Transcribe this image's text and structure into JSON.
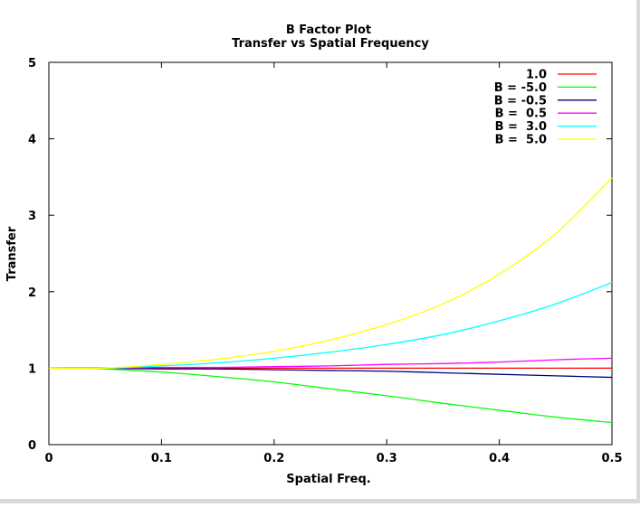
{
  "chart_data": {
    "type": "line",
    "title": "B Factor Plot",
    "subtitle": "Transfer vs Spatial Frequency",
    "xlabel": "Spatial Freq.",
    "ylabel": "Transfer",
    "xlim": [
      0,
      0.5
    ],
    "ylim": [
      0,
      5
    ],
    "xticks": [
      "0",
      "0.1",
      "0.2",
      "0.3",
      "0.4",
      "0.5"
    ],
    "yticks": [
      "0",
      "1",
      "2",
      "3",
      "4",
      "5"
    ],
    "grid": false,
    "legend_position": "top-right",
    "x": [
      0,
      0.05,
      0.1,
      0.15,
      0.2,
      0.25,
      0.3,
      0.35,
      0.4,
      0.45,
      0.5
    ],
    "series": [
      {
        "name": "1.0",
        "color": "#ff0000",
        "values": [
          1.0,
          1.0,
          1.0,
          1.0,
          1.0,
          1.0,
          1.0,
          1.0,
          1.0,
          1.0,
          1.0
        ]
      },
      {
        "name": "B = -5.0",
        "color": "#00ff00",
        "values": [
          1.0,
          0.99,
          0.95,
          0.89,
          0.82,
          0.73,
          0.64,
          0.54,
          0.45,
          0.36,
          0.29
        ]
      },
      {
        "name": "B = -0.5",
        "color": "#000080",
        "values": [
          1.0,
          1.0,
          0.99,
          0.99,
          0.98,
          0.97,
          0.96,
          0.94,
          0.92,
          0.9,
          0.88
        ]
      },
      {
        "name": "B =  0.5",
        "color": "#ff00ff",
        "values": [
          1.0,
          1.0,
          1.01,
          1.01,
          1.02,
          1.03,
          1.05,
          1.06,
          1.08,
          1.11,
          1.13
        ]
      },
      {
        "name": "B =  3.0",
        "color": "#00ffff",
        "values": [
          1.0,
          1.0,
          1.03,
          1.07,
          1.13,
          1.21,
          1.31,
          1.44,
          1.62,
          1.84,
          2.12
        ]
      },
      {
        "name": "B =  5.0",
        "color": "#ffff00",
        "values": [
          1.0,
          1.0,
          1.05,
          1.12,
          1.22,
          1.37,
          1.57,
          1.84,
          2.23,
          2.76,
          3.49
        ]
      }
    ]
  }
}
